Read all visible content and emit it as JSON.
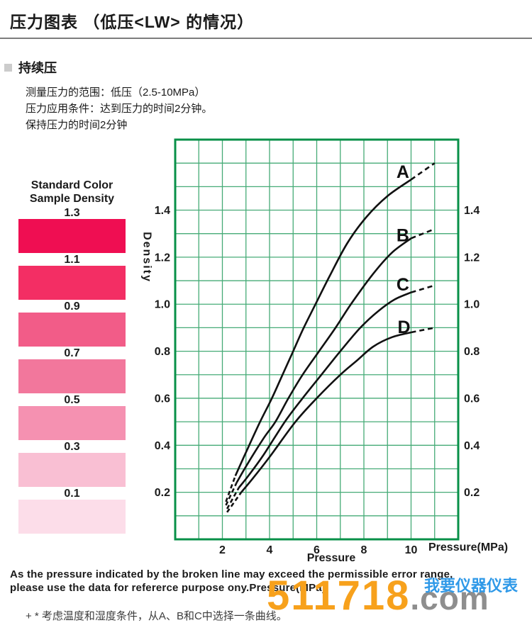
{
  "page": {
    "title": "压力图表 （低压<LW> 的情况）",
    "section_label": "持续压",
    "conditions": [
      "测量压力的范围：低压（2.5-10MPa）",
      "压力应用条件：达到压力的时间2分钟。",
      "保持压力的时间2分钟"
    ]
  },
  "color_samples": {
    "title_line1": "Standard Color",
    "title_line2": "Sample Density",
    "items": [
      {
        "density": "1.3",
        "color": "#ef0e52"
      },
      {
        "density": "1.1",
        "color": "#f32e64"
      },
      {
        "density": "0.9",
        "color": "#f25c88"
      },
      {
        "density": "0.7",
        "color": "#f2779c"
      },
      {
        "density": "0.5",
        "color": "#f591b1"
      },
      {
        "density": "0.3",
        "color": "#f9bfd3"
      },
      {
        "density": "0.1",
        "color": "#fcdde9"
      }
    ]
  },
  "chart_data": {
    "type": "line",
    "xlabel": "Pressure",
    "xlabel_unit": "Pressure(MPa)",
    "ylabel": "Density",
    "xlim": [
      0,
      12
    ],
    "ylim": [
      0,
      1.7
    ],
    "x_ticks": [
      2,
      4,
      6,
      8,
      10
    ],
    "y_ticks": [
      0.2,
      0.4,
      0.6,
      0.8,
      1.0,
      1.2,
      1.4
    ],
    "grid": {
      "x_step": 1,
      "y_step": 0.1,
      "line_color": "#46ab77",
      "border_color": "#089048"
    },
    "curve_color": "#111111",
    "series": [
      {
        "name": "A",
        "label_at": [
          9.65,
          1.565
        ],
        "dash_in": [
          [
            2.15,
            0.16
          ],
          [
            2.55,
            0.27
          ]
        ],
        "solid": [
          [
            2.55,
            0.27
          ],
          [
            3.0,
            0.37
          ],
          [
            3.6,
            0.5
          ],
          [
            4.1,
            0.6
          ],
          [
            4.55,
            0.7
          ],
          [
            5.0,
            0.8
          ],
          [
            5.45,
            0.9
          ],
          [
            5.95,
            1.0
          ],
          [
            6.55,
            1.12
          ],
          [
            7.3,
            1.26
          ],
          [
            8.1,
            1.37
          ],
          [
            9.0,
            1.46
          ],
          [
            10.0,
            1.53
          ]
        ],
        "dash_out": [
          [
            10.0,
            1.53
          ],
          [
            11.0,
            1.6
          ]
        ]
      },
      {
        "name": "B",
        "label_at": [
          9.65,
          1.295
        ],
        "dash_in": [
          [
            2.15,
            0.145
          ],
          [
            2.6,
            0.24
          ]
        ],
        "solid": [
          [
            2.6,
            0.24
          ],
          [
            3.0,
            0.31
          ],
          [
            3.75,
            0.43
          ],
          [
            4.25,
            0.5
          ],
          [
            4.8,
            0.6
          ],
          [
            5.4,
            0.7
          ],
          [
            6.1,
            0.8
          ],
          [
            6.8,
            0.9
          ],
          [
            7.45,
            1.0
          ],
          [
            8.4,
            1.13
          ],
          [
            9.2,
            1.22
          ],
          [
            10.0,
            1.28
          ]
        ],
        "dash_out": [
          [
            10.0,
            1.28
          ],
          [
            11.0,
            1.32
          ]
        ]
      },
      {
        "name": "C",
        "label_at": [
          9.65,
          1.085
        ],
        "dash_in": [
          [
            2.2,
            0.13
          ],
          [
            2.7,
            0.22
          ]
        ],
        "solid": [
          [
            2.7,
            0.22
          ],
          [
            3.1,
            0.27
          ],
          [
            3.75,
            0.36
          ],
          [
            4.65,
            0.5
          ],
          [
            5.4,
            0.6
          ],
          [
            6.2,
            0.7
          ],
          [
            7.0,
            0.8
          ],
          [
            7.85,
            0.9
          ],
          [
            8.6,
            0.97
          ],
          [
            9.3,
            1.02
          ],
          [
            10.0,
            1.05
          ]
        ],
        "dash_out": [
          [
            10.0,
            1.05
          ],
          [
            11.0,
            1.08
          ]
        ]
      },
      {
        "name": "D",
        "label_at": [
          9.7,
          0.905
        ],
        "dash_in": [
          [
            2.2,
            0.115
          ],
          [
            2.8,
            0.2
          ]
        ],
        "solid": [
          [
            2.8,
            0.2
          ],
          [
            3.3,
            0.26
          ],
          [
            4.0,
            0.35
          ],
          [
            5.1,
            0.5
          ],
          [
            6.0,
            0.6
          ],
          [
            7.0,
            0.7
          ],
          [
            7.7,
            0.76
          ],
          [
            8.4,
            0.82
          ],
          [
            9.2,
            0.86
          ],
          [
            10.0,
            0.88
          ]
        ],
        "dash_out": [
          [
            10.0,
            0.88
          ],
          [
            11.0,
            0.9
          ]
        ]
      }
    ]
  },
  "footer": {
    "note_line1": "As the pressure indicated by the broken line may exceed the permissible error range,",
    "note_line2": "please use the data for refererce purpose ony.Pressure(MPa)",
    "footnote": "+ * 考虑温度和湿度条件，从A、B和C中选择一条曲线。"
  },
  "watermark": {
    "digits": "511718",
    "tld": ".com",
    "site_name": "我要仪器仪表",
    "digit_color": "#f7a11c",
    "tld_color": "#8e8e8e",
    "name_color": "#2f99e8"
  }
}
